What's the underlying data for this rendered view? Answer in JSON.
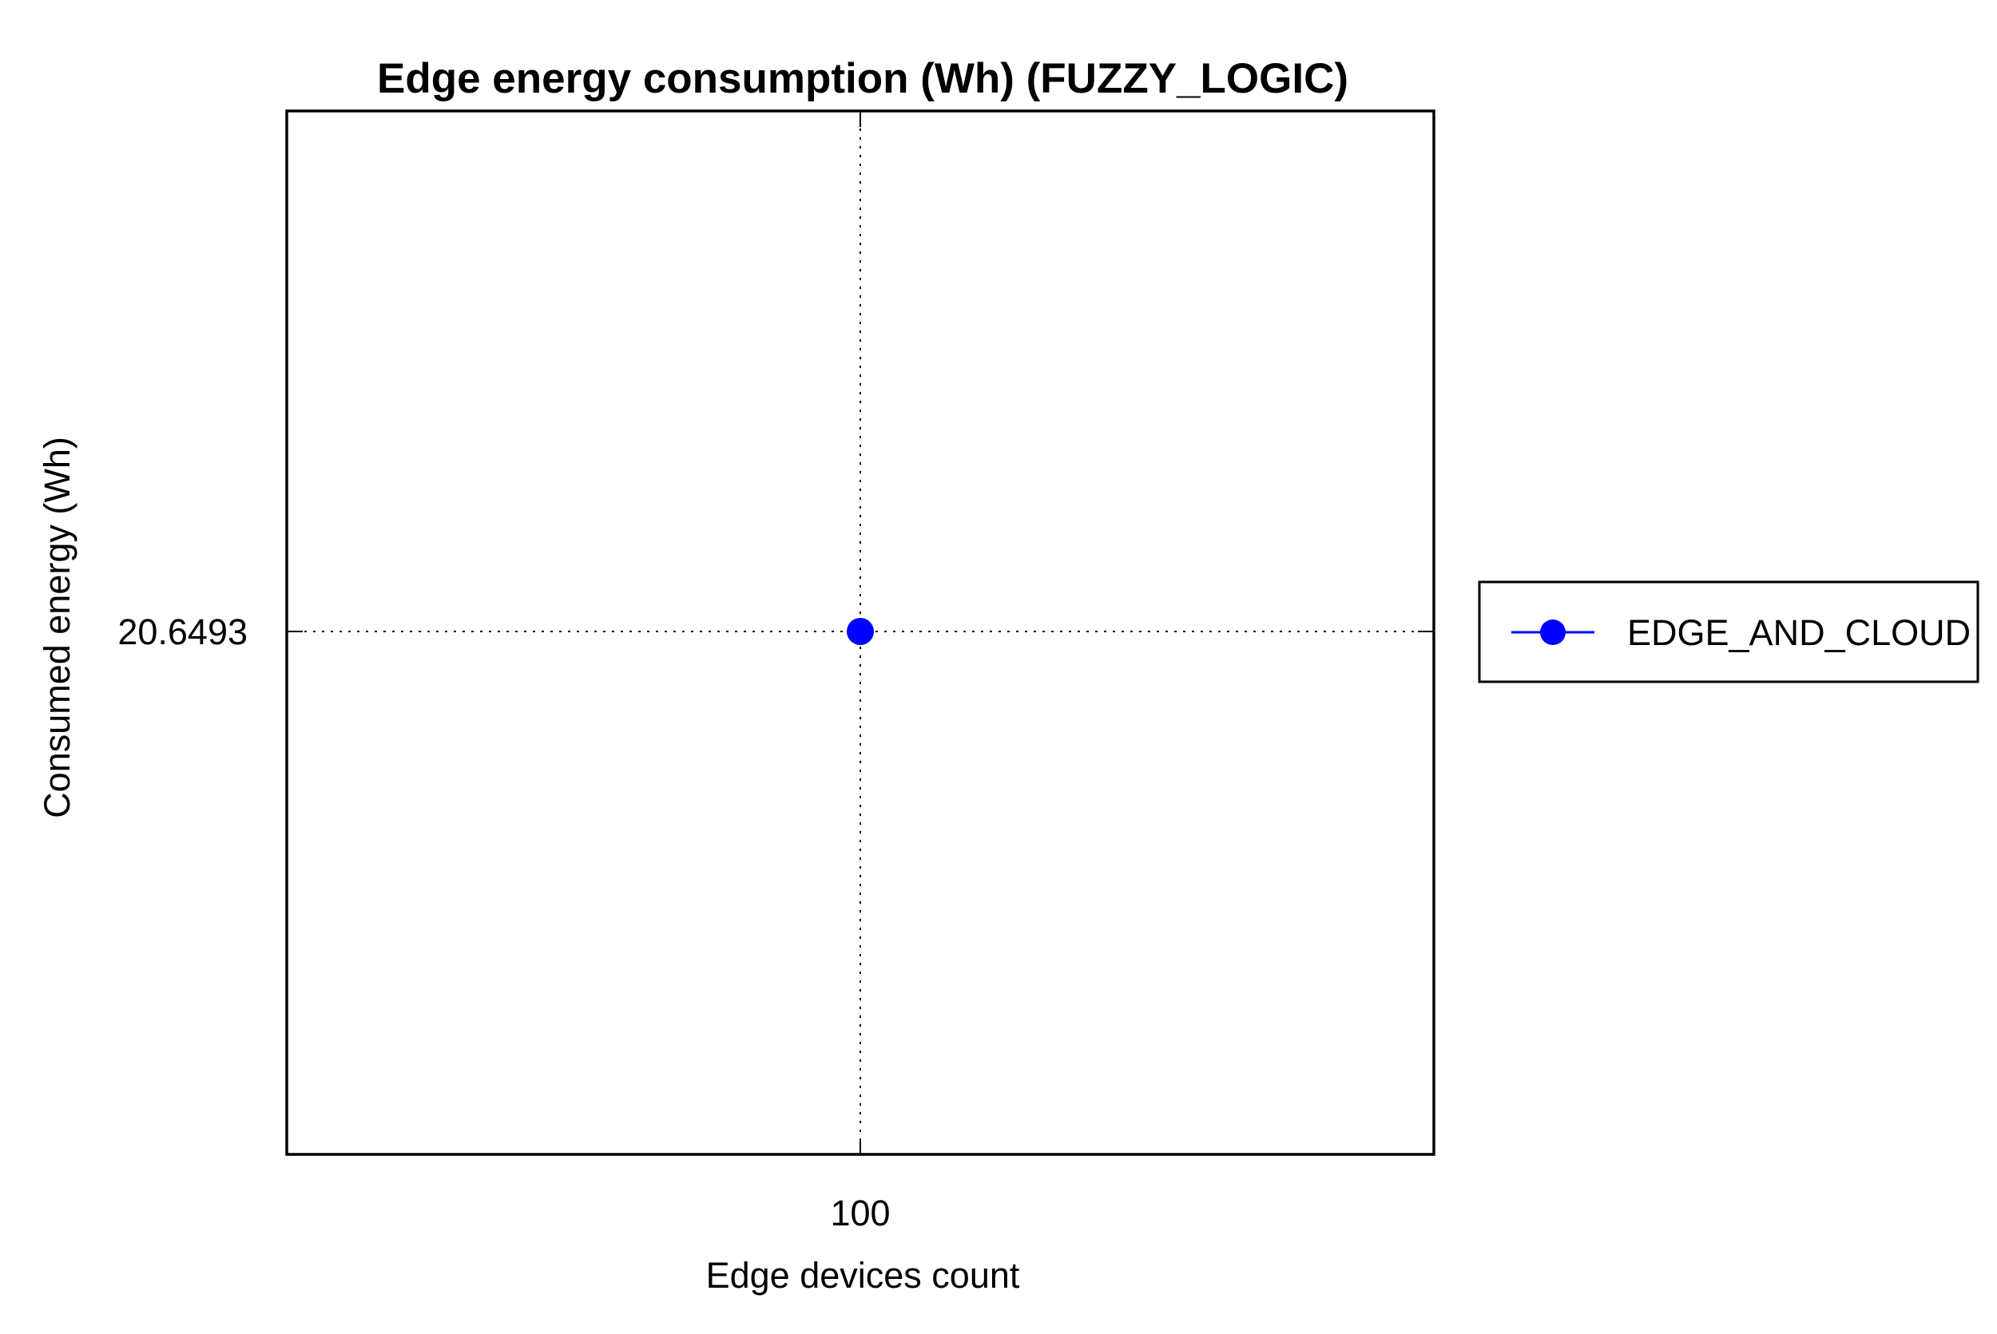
{
  "chart_data": {
    "type": "line",
    "title": "Edge energy consumption (Wh) (FUZZY_LOGIC)",
    "xlabel": "Edge devices count",
    "ylabel": "Consumed energy (Wh)",
    "x_ticks": [
      "100"
    ],
    "y_ticks": [
      "20.6493"
    ],
    "grid": true,
    "legend_position": "right",
    "series": [
      {
        "name": "EDGE_AND_CLOUD",
        "color": "#0000ff",
        "marker": "circle",
        "x": [
          100
        ],
        "y": [
          20.6493
        ]
      }
    ]
  }
}
